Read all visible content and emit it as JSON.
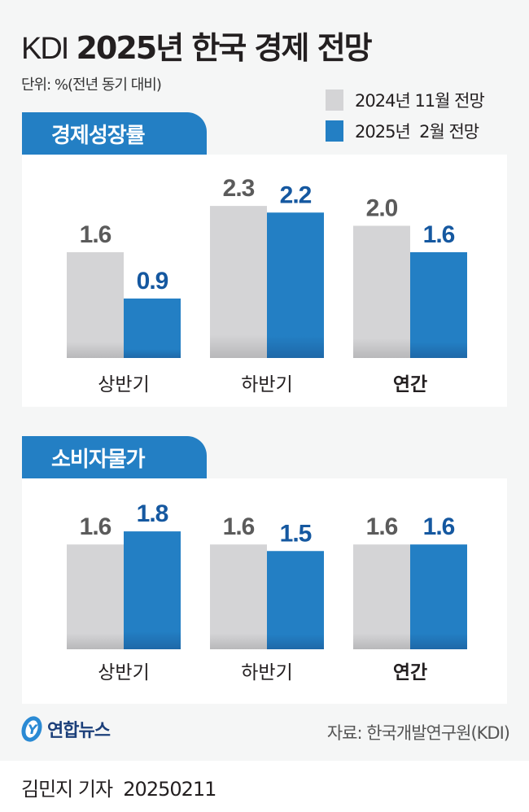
{
  "header": {
    "title_light": "KDI",
    "title_bold": "2025년 한국 경제 전망",
    "unit": "단위: %(전년 동기 대비)"
  },
  "legend": [
    {
      "label": "2024년 11월 전망",
      "color": "#d4d4d6"
    },
    {
      "label": "2025년  2월 전망",
      "color": "#237fc4"
    }
  ],
  "colors": {
    "gray_bar": "#d4d4d6",
    "blue_bar": "#237fc4",
    "gray_text": "#5b5b5b",
    "blue_text": "#1558a0",
    "tab": "#237fc4"
  },
  "chart_data": [
    {
      "type": "bar",
      "title": "경제성장률",
      "categories": [
        "상반기",
        "하반기",
        "연간"
      ],
      "series": [
        {
          "name": "2024년 11월 전망",
          "values": [
            1.6,
            2.3,
            2.0
          ]
        },
        {
          "name": "2025년 2월 전망",
          "values": [
            0.9,
            2.2,
            1.6
          ]
        }
      ],
      "ylim": [
        0,
        2.6
      ],
      "grid": false,
      "legend": "top-right"
    },
    {
      "type": "bar",
      "title": "소비자물가",
      "categories": [
        "상반기",
        "하반기",
        "연간"
      ],
      "series": [
        {
          "name": "2024년 11월 전망",
          "values": [
            1.6,
            1.6,
            1.6
          ]
        },
        {
          "name": "2025년 2월 전망",
          "values": [
            1.8,
            1.5,
            1.6
          ]
        }
      ],
      "ylim": [
        0,
        2.6
      ],
      "grid": false,
      "legend": "top-right"
    }
  ],
  "footer": {
    "logo_text": "연합뉴스",
    "source": "자료: 한국개발연구원(KDI)",
    "byline": "김민지 기자  20250211"
  }
}
